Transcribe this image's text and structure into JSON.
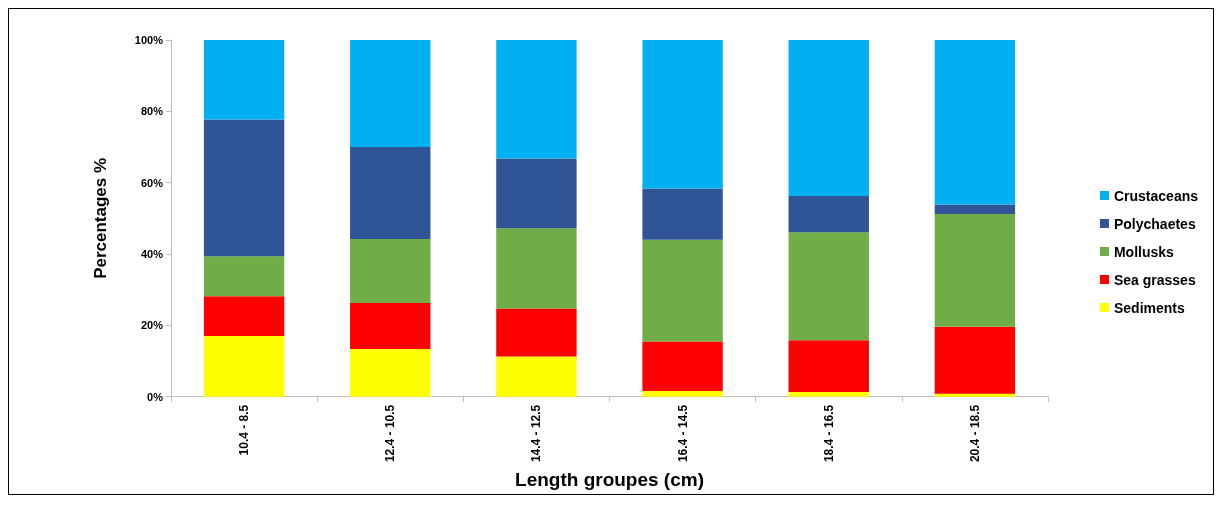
{
  "chart_data": {
    "type": "bar",
    "stacked": true,
    "xlabel": "Length groupes (cm)",
    "ylabel": "Percentages %",
    "categories": [
      "10.4 - 8.5",
      "12.4 - 10.5",
      "14.4 - 12.5",
      "16.4 - 14.5",
      "18.4 - 16.5",
      "20.4 - 18.5"
    ],
    "series": [
      {
        "name": "Sediments",
        "color": "#ffff00",
        "values": [
          17,
          13.4,
          11.3,
          1.6,
          1.3,
          0.8
        ]
      },
      {
        "name": "Sea grasses",
        "color": "#ff0000",
        "values": [
          11.2,
          12.9,
          13.4,
          13.9,
          14.5,
          18.8
        ]
      },
      {
        "name": "Mollusks",
        "color": "#70ad47",
        "values": [
          11.2,
          17.9,
          22.5,
          28.5,
          30.3,
          31.6
        ]
      },
      {
        "name": "Polychaetes",
        "color": "#2f5597",
        "values": [
          38.3,
          25.8,
          19.6,
          14.4,
          10.2,
          2.7
        ]
      },
      {
        "name": "Crustaceans",
        "color": "#00b0f0",
        "values": [
          22.3,
          30,
          33.2,
          41.6,
          43.7,
          46.1
        ]
      }
    ],
    "ylim": [
      0,
      100
    ],
    "yticks": [
      {
        "value": 0,
        "label": "0%"
      },
      {
        "value": 20,
        "label": "20%"
      },
      {
        "value": 40,
        "label": "40%"
      },
      {
        "value": 60,
        "label": "60%"
      },
      {
        "value": 80,
        "label": "80%"
      },
      {
        "value": 100,
        "label": "100%"
      }
    ],
    "grid": false,
    "legend": "right"
  }
}
